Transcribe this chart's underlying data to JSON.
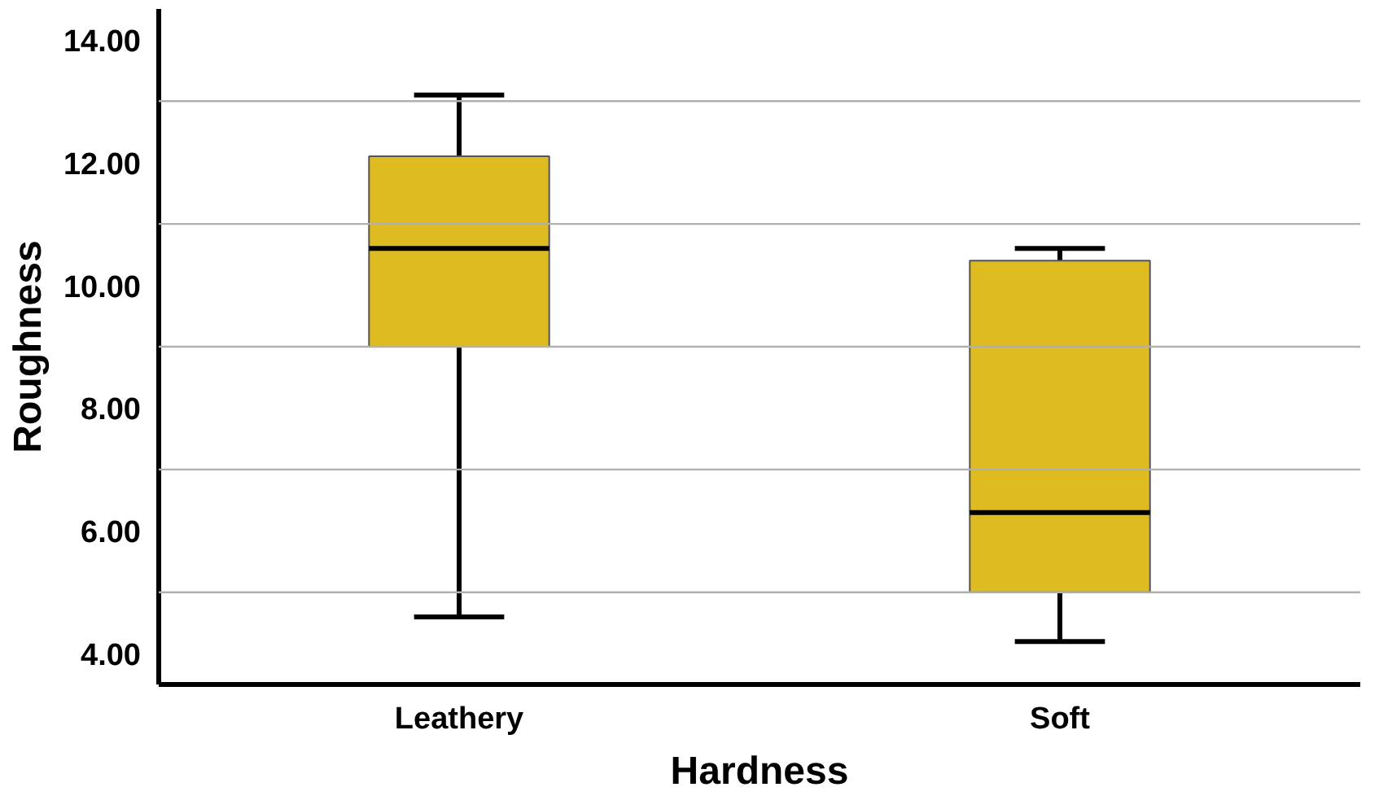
{
  "chart_data": {
    "type": "box",
    "xlabel": "Hardness",
    "ylabel": "Roughness",
    "categories": [
      "Leathery",
      "Soft"
    ],
    "color": "#dfbb22",
    "boxes": [
      {
        "low": 4.6,
        "q1": 9.0,
        "median": 10.6,
        "q3": 12.1,
        "high": 13.1
      },
      {
        "low": 4.2,
        "q1": 5.0,
        "median": 6.3,
        "q3": 10.4,
        "high": 10.6
      }
    ],
    "ylim": [
      3.5,
      14.5
    ],
    "yticks": [
      {
        "value": 4,
        "label": "4.00"
      },
      {
        "value": 5,
        "label": null
      },
      {
        "value": 6,
        "label": "6.00"
      },
      {
        "value": 7,
        "label": null
      },
      {
        "value": 8,
        "label": "8.00"
      },
      {
        "value": 9,
        "label": null
      },
      {
        "value": 10,
        "label": "10.00"
      },
      {
        "value": 11,
        "label": null
      },
      {
        "value": 12,
        "label": "12.00"
      },
      {
        "value": 13,
        "label": null
      },
      {
        "value": 14,
        "label": "14.00"
      }
    ],
    "grid": "y"
  }
}
